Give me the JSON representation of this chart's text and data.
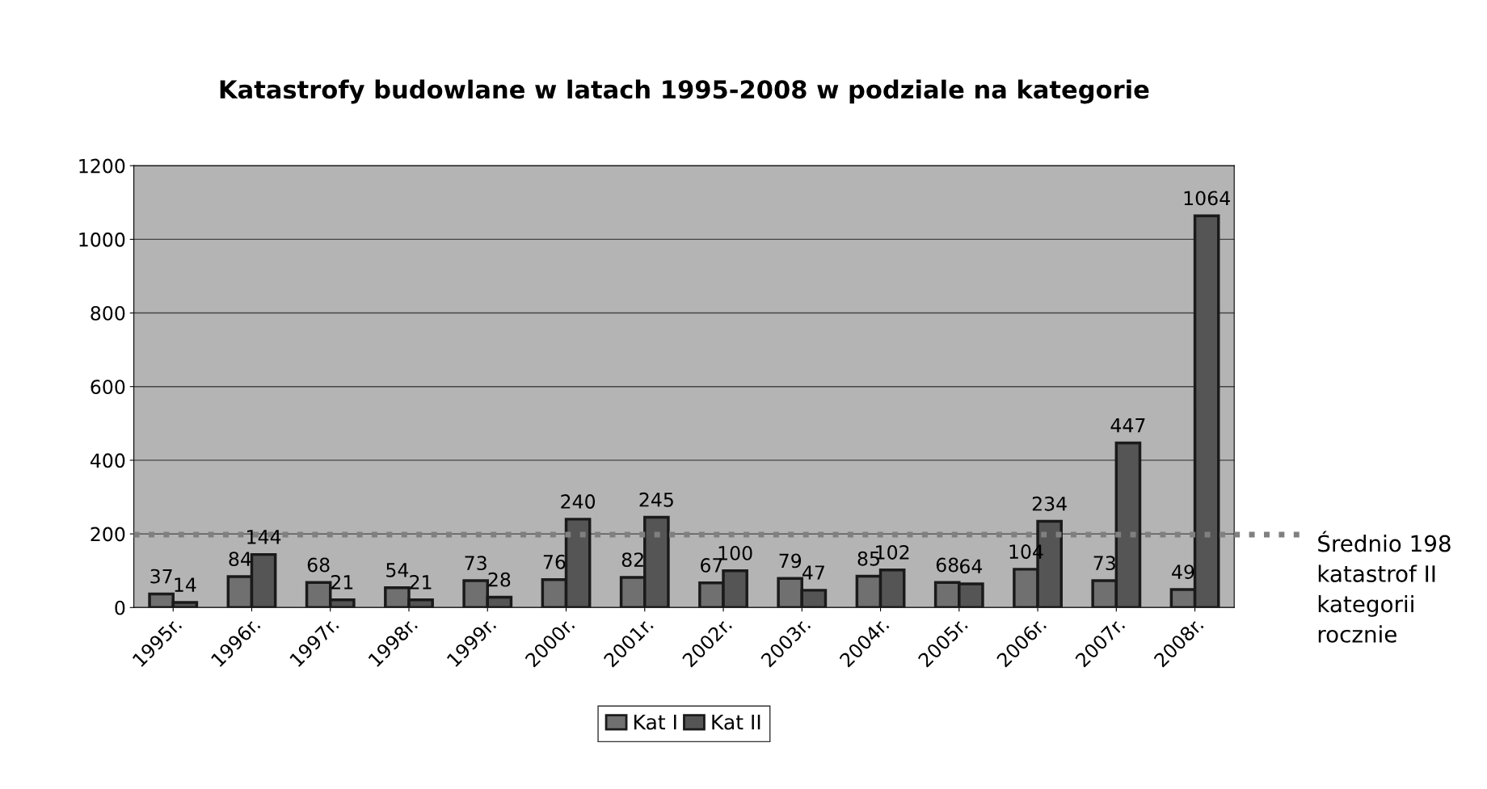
{
  "chart_data": {
    "type": "bar",
    "title": "Katastrofy budowlane w latach 1995-2008 w podziale na kategorie",
    "categories": [
      "1995r.",
      "1996r.",
      "1997r.",
      "1998r.",
      "1999r.",
      "2000r.",
      "2001r.",
      "2002r.",
      "2003r.",
      "2004r.",
      "2005r.",
      "2006r.",
      "2007r.",
      "2008r."
    ],
    "series": [
      {
        "name": "Kat I",
        "color": "#707070",
        "values": [
          37,
          84,
          68,
          54,
          73,
          76,
          82,
          67,
          79,
          85,
          68,
          104,
          73,
          49
        ]
      },
      {
        "name": "Kat II",
        "color": "#555555",
        "values": [
          14,
          144,
          21,
          21,
          28,
          240,
          245,
          100,
          47,
          102,
          64,
          234,
          447,
          1064
        ]
      }
    ],
    "ylim": [
      0,
      1200
    ],
    "yticks": [
      0,
      200,
      400,
      600,
      800,
      1000,
      1200
    ],
    "grid": "y",
    "legend": "bottom",
    "data_labels": true,
    "ref_lines": [
      {
        "axis": "y",
        "value": 198,
        "label": "Średnio 198\nkatastrof II\nkategorii\nrocznie",
        "color": "#808080",
        "line_style": "dotted"
      }
    ]
  }
}
